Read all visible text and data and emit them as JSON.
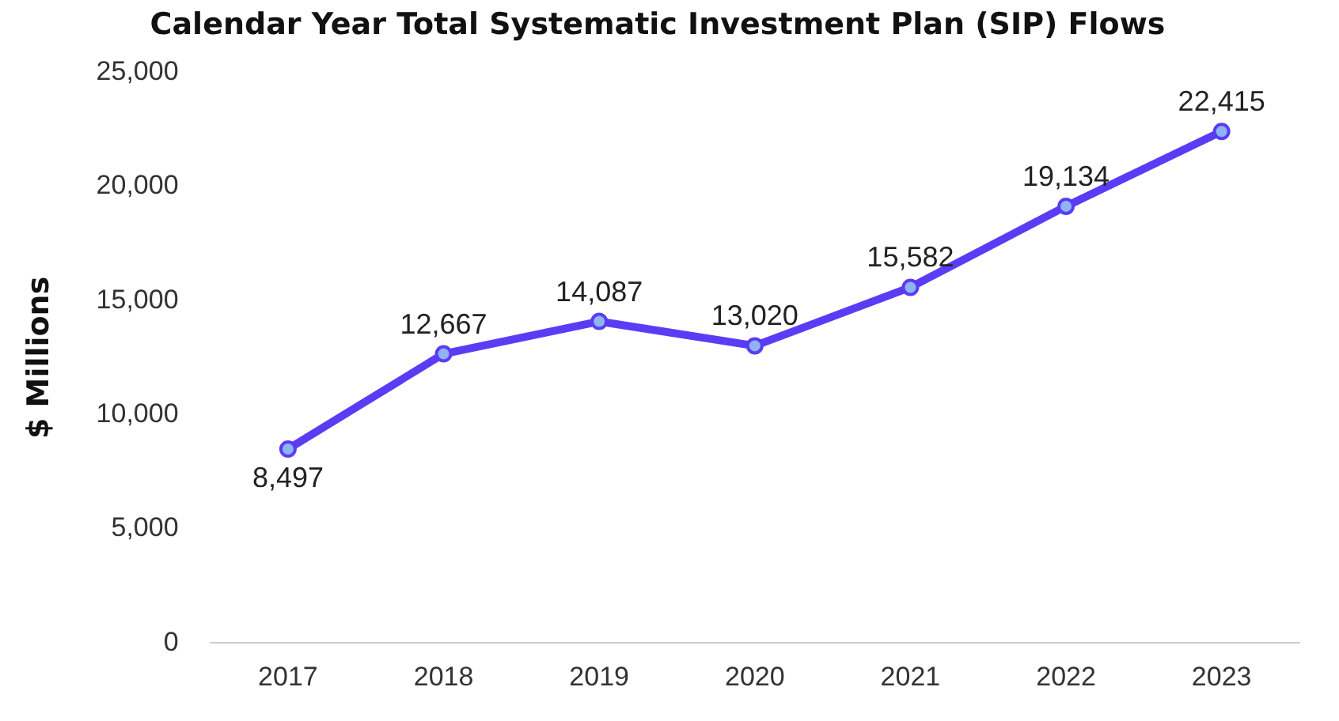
{
  "chart_data": {
    "type": "line",
    "title": "Calendar Year Total Systematic Investment Plan (SIP) Flows",
    "ylabel": "$ Millions",
    "categories": [
      "2017",
      "2018",
      "2019",
      "2020",
      "2021",
      "2022",
      "2023"
    ],
    "series": [
      {
        "color": "#5b3cf5",
        "values": [
          8497,
          12667,
          14087,
          13020,
          15582,
          19134,
          22415
        ],
        "value_labels": [
          "8,497",
          "12,667",
          "14,087",
          "13,020",
          "15,582",
          "19,134",
          "22,415"
        ]
      }
    ],
    "ylim": [
      0,
      25000
    ],
    "yticks": [
      0,
      {
        "value": 5000,
        "label": "5,000"
      },
      {
        "value": 10000,
        "label": "10,000"
      },
      {
        "value": 15000,
        "label": "15,000"
      },
      {
        "value": 20000,
        "label": "20,000"
      },
      {
        "value": 25000,
        "label": "25,000"
      }
    ],
    "grid": false,
    "legend": false,
    "marker": "circle",
    "line_style": "solid"
  }
}
